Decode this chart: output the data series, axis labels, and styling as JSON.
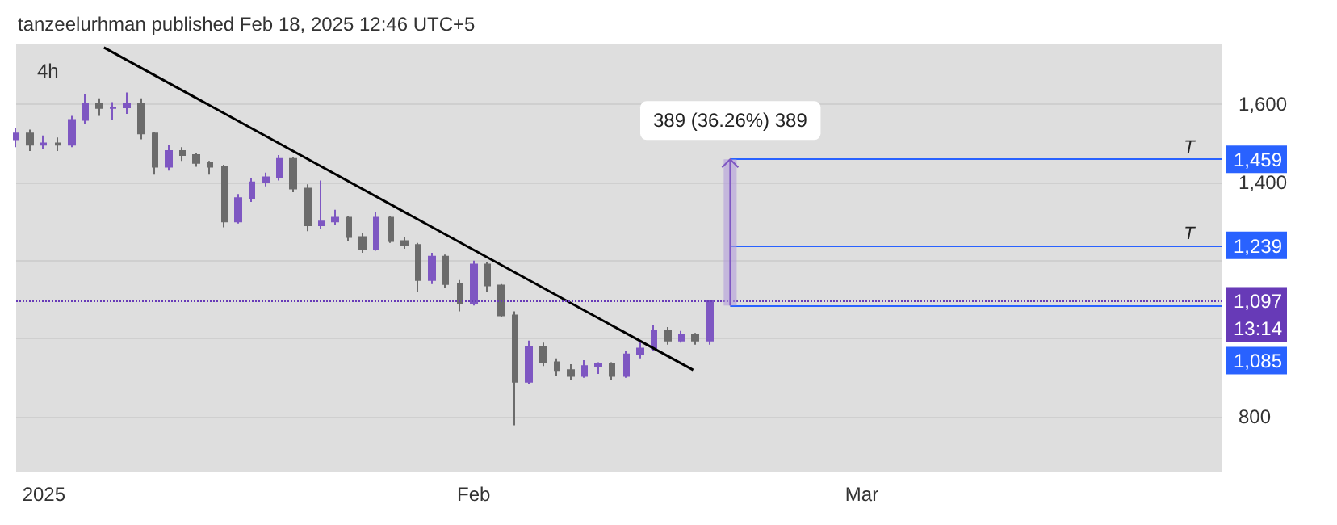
{
  "chart_data": {
    "type": "candlestick",
    "title": "tanzeelurhman published Feb 18, 2025 12:46 UTC+5",
    "subtitle": "4h",
    "x": [
      "2024-12-30",
      "2024-12-31",
      "2025-01-01",
      "2025-01-02",
      "2025-01-03",
      "2025-01-04",
      "2025-01-05",
      "2025-01-06",
      "2025-01-07",
      "2025-01-08",
      "2025-01-09",
      "2025-01-10",
      "2025-01-11",
      "2025-01-12",
      "2025-01-13",
      "2025-01-14",
      "2025-01-15",
      "2025-01-16",
      "2025-01-17",
      "2025-01-18",
      "2025-01-19",
      "2025-01-20",
      "2025-01-21",
      "2025-01-22",
      "2025-01-23",
      "2025-01-24",
      "2025-01-25",
      "2025-01-26",
      "2025-01-27",
      "2025-01-28",
      "2025-01-29",
      "2025-01-30",
      "2025-01-31",
      "2025-02-01",
      "2025-02-02",
      "2025-02-03",
      "2025-02-04",
      "2025-02-05",
      "2025-02-06",
      "2025-02-07",
      "2025-02-08",
      "2025-02-09",
      "2025-02-10",
      "2025-02-11",
      "2025-02-12",
      "2025-02-13",
      "2025-02-14",
      "2025-02-15",
      "2025-02-16",
      "2025-02-17",
      "2025-02-18"
    ],
    "ohlc": [
      [
        1510,
        1540,
        1490,
        1525
      ],
      [
        1525,
        1535,
        1480,
        1496
      ],
      [
        1496,
        1520,
        1485,
        1500
      ],
      [
        1500,
        1515,
        1480,
        1496
      ],
      [
        1496,
        1570,
        1490,
        1560
      ],
      [
        1560,
        1625,
        1550,
        1600
      ],
      [
        1600,
        1615,
        1570,
        1590
      ],
      [
        1590,
        1605,
        1560,
        1592
      ],
      [
        1592,
        1630,
        1575,
        1600
      ],
      [
        1600,
        1615,
        1510,
        1525
      ],
      [
        1525,
        1530,
        1420,
        1440
      ],
      [
        1440,
        1495,
        1430,
        1480
      ],
      [
        1480,
        1490,
        1455,
        1470
      ],
      [
        1470,
        1475,
        1440,
        1450
      ],
      [
        1450,
        1455,
        1420,
        1440
      ],
      [
        1440,
        1445,
        1285,
        1300
      ],
      [
        1300,
        1370,
        1295,
        1360
      ],
      [
        1360,
        1410,
        1350,
        1400
      ],
      [
        1400,
        1425,
        1390,
        1413
      ],
      [
        1413,
        1470,
        1405,
        1460
      ],
      [
        1460,
        1465,
        1375,
        1384
      ],
      [
        1384,
        1395,
        1275,
        1290
      ],
      [
        1290,
        1405,
        1280,
        1300
      ],
      [
        1300,
        1330,
        1290,
        1310
      ],
      [
        1310,
        1315,
        1250,
        1260
      ],
      [
        1260,
        1270,
        1220,
        1230
      ],
      [
        1230,
        1325,
        1225,
        1310
      ],
      [
        1310,
        1315,
        1245,
        1250
      ],
      [
        1250,
        1260,
        1230,
        1240
      ],
      [
        1240,
        1245,
        1120,
        1150
      ],
      [
        1150,
        1220,
        1140,
        1210
      ],
      [
        1210,
        1215,
        1130,
        1140
      ],
      [
        1140,
        1150,
        1070,
        1090
      ],
      [
        1090,
        1200,
        1085,
        1190
      ],
      [
        1190,
        1195,
        1120,
        1136
      ],
      [
        1136,
        1140,
        1055,
        1060
      ],
      [
        1060,
        1070,
        779,
        890
      ],
      [
        890,
        995,
        885,
        980
      ],
      [
        980,
        990,
        930,
        940
      ],
      [
        940,
        950,
        905,
        920
      ],
      [
        920,
        935,
        895,
        905
      ],
      [
        905,
        945,
        900,
        930
      ],
      [
        930,
        940,
        910,
        935
      ],
      [
        935,
        940,
        895,
        905
      ],
      [
        905,
        970,
        900,
        960
      ],
      [
        960,
        995,
        950,
        975
      ],
      [
        975,
        1035,
        970,
        1020
      ],
      [
        1020,
        1030,
        985,
        995
      ],
      [
        995,
        1020,
        990,
        1010
      ],
      [
        1010,
        1015,
        985,
        995
      ],
      [
        995,
        1100,
        985,
        1097
      ]
    ],
    "colors": [
      "#7e57c2",
      "#6b6b6b",
      "#7e57c2",
      "#6b6b6b",
      "#7e57c2",
      "#7e57c2",
      "#6b6b6b",
      "#7e57c2",
      "#7e57c2",
      "#6b6b6b",
      "#6b6b6b",
      "#7e57c2",
      "#6b6b6b",
      "#6b6b6b",
      "#6b6b6b",
      "#6b6b6b",
      "#7e57c2",
      "#7e57c2",
      "#7e57c2",
      "#7e57c2",
      "#6b6b6b",
      "#6b6b6b",
      "#7e57c2",
      "#7e57c2",
      "#6b6b6b",
      "#6b6b6b",
      "#7e57c2",
      "#6b6b6b",
      "#6b6b6b",
      "#6b6b6b",
      "#7e57c2",
      "#6b6b6b",
      "#6b6b6b",
      "#7e57c2",
      "#6b6b6b",
      "#6b6b6b",
      "#6b6b6b",
      "#7e57c2",
      "#6b6b6b",
      "#6b6b6b",
      "#6b6b6b",
      "#7e57c2",
      "#7e57c2",
      "#6b6b6b",
      "#7e57c2",
      "#7e57c2",
      "#7e57c2",
      "#6b6b6b",
      "#7e57c2",
      "#6b6b6b",
      "#7e57c2"
    ],
    "series": [
      {
        "type": "line",
        "color": "#000000",
        "x": [
          "2025-01-05T08:00",
          "2025-02-16T20:00"
        ],
        "values": [
          1745,
          920
        ]
      }
    ],
    "xlim": [
      "2024-12-30",
      "2025-03-27"
    ],
    "xticks": [
      {
        "value": "2025-01-01",
        "label": "2025"
      },
      {
        "value": "2025-02-01",
        "label": "Feb"
      },
      {
        "value": "2025-03-01",
        "label": "Mar"
      }
    ],
    "ylim": [
      660,
      1755
    ],
    "yticks": [
      800,
      {
        "value": 1000,
        "label": null
      },
      {
        "value": 1200,
        "label": null
      },
      {
        "value": 1400,
        "label": "1,400"
      },
      {
        "value": 1600,
        "label": "1,600"
      }
    ],
    "grid": "y",
    "ref_lines": [
      {
        "axis": "y",
        "value": 1459,
        "label": "1,459",
        "color": "#2962ff"
      },
      {
        "axis": "y",
        "value": 1239,
        "label": "1,239",
        "color": "#2962ff"
      },
      {
        "axis": "y",
        "value": 1085,
        "label": "1,085",
        "color": "#2962ff"
      },
      {
        "axis": "y",
        "value": 1097,
        "label": "1,097",
        "color": "#673ab7",
        "line_style": "dotted"
      }
    ],
    "annotations": [
      {
        "text": "389 (36.26%) 389",
        "x": "2025-02-19T12:00",
        "y": 1459
      },
      {
        "text": "T",
        "x": "2025-03-25",
        "y": 1459
      },
      {
        "text": "T",
        "x": "2025-03-25",
        "y": 1239
      },
      "13:14"
    ]
  }
}
